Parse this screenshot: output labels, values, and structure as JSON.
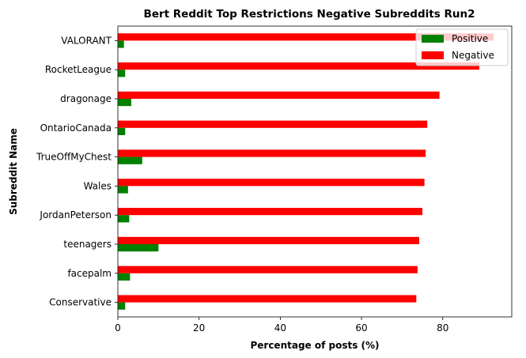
{
  "chart_data": {
    "type": "bar",
    "orientation": "horizontal",
    "title": "Bert Reddit Top Restrictions Negative Subreddits Run2",
    "xlabel": "Percentage of posts (%)",
    "ylabel": "Subreddit Name",
    "xlim": [
      0,
      97
    ],
    "xticks": [
      "0",
      "20",
      "40",
      "60",
      "80"
    ],
    "categories": [
      "VALORANT",
      "RocketLeague",
      "dragonage",
      "OntarioCanada",
      "TrueOffMyChest",
      "Wales",
      "JordanPeterson",
      "teenagers",
      "facepalm",
      "Conservative"
    ],
    "series": [
      {
        "name": "Positive",
        "color": "#008000",
        "values": [
          1.5,
          1.8,
          3.3,
          1.8,
          6.0,
          2.5,
          2.8,
          10.0,
          3.0,
          1.8
        ]
      },
      {
        "name": "Negative",
        "color": "#ff0000",
        "values": [
          92.5,
          89.0,
          79.2,
          76.2,
          75.8,
          75.5,
          75.0,
          74.2,
          73.8,
          73.5
        ]
      }
    ],
    "legend_position": "top-right",
    "grid": false
  }
}
